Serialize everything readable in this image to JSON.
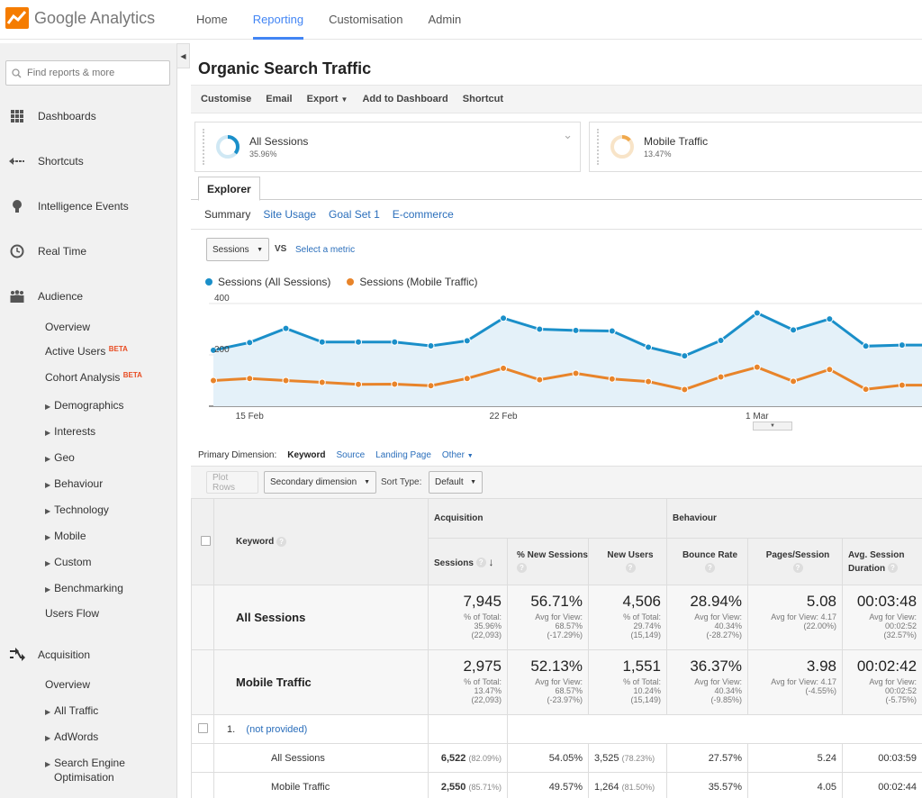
{
  "app": {
    "logo_text": "Google Analytics"
  },
  "topnav": [
    "Home",
    "Reporting",
    "Customisation",
    "Admin"
  ],
  "sidebar": {
    "search_placeholder": "Find reports & more",
    "main_items": [
      "Dashboards",
      "Shortcuts",
      "Intelligence Events",
      "Real Time",
      "Audience",
      "Acquisition"
    ],
    "audience_items": [
      "Overview",
      "Active Users",
      "Cohort Analysis",
      "Demographics",
      "Interests",
      "Geo",
      "Behaviour",
      "Technology",
      "Mobile",
      "Custom",
      "Benchmarking",
      "Users Flow"
    ],
    "beta": "BETA",
    "acquisition_items": [
      "Overview",
      "All Traffic",
      "AdWords",
      "Search Engine",
      "Optimisation"
    ]
  },
  "page": {
    "title": "Organic Search Traffic"
  },
  "toolbar": {
    "customise": "Customise",
    "email": "Email",
    "export": "Export",
    "add_dashboard": "Add to Dashboard",
    "shortcut": "Shortcut"
  },
  "segments": [
    {
      "name": "All Sessions",
      "pct": "35.96%",
      "color": "#1a8fc9"
    },
    {
      "name": "Mobile Traffic",
      "pct": "13.47%",
      "color": "#f0a94d"
    }
  ],
  "explorer": {
    "tab": "Explorer",
    "subtabs": [
      "Summary",
      "Site Usage",
      "Goal Set 1",
      "E-commerce"
    ],
    "metric": "Sessions",
    "vs": "VS",
    "select_metric": "Select a metric"
  },
  "chart_data": {
    "type": "line",
    "series": [
      {
        "name": "Sessions (All Sessions)",
        "color": "#1a8fc9",
        "values": [
          218,
          248,
          303,
          250,
          250,
          250,
          235,
          255,
          343,
          300,
          295,
          293,
          230,
          196,
          256,
          363,
          297,
          340,
          234,
          238
        ]
      },
      {
        "name": "Sessions (Mobile Traffic)",
        "color": "#e8842a",
        "values": [
          100,
          108,
          100,
          93,
          85,
          86,
          80,
          108,
          148,
          103,
          128,
          106,
          96,
          65,
          114,
          152,
          97,
          143,
          66,
          82
        ]
      }
    ],
    "y_ticks": [
      "400",
      "200"
    ],
    "ylim": [
      0,
      400
    ],
    "x_tick_labels": [
      "15 Feb",
      "22 Feb",
      "1 Mar"
    ],
    "x_tick_index": [
      1,
      8,
      15
    ],
    "fill_area": true
  },
  "dimension": {
    "label": "Primary Dimension:",
    "current": "Keyword",
    "links": [
      "Source",
      "Landing Page",
      "Other"
    ]
  },
  "controls": {
    "plot_rows": "Plot Rows",
    "secondary": "Secondary dimension",
    "sort_type": "Sort Type:",
    "sort_default": "Default"
  },
  "table": {
    "group_headers": [
      "Acquisition",
      "Behaviour"
    ],
    "columns": [
      "Keyword",
      "Sessions",
      "% New Sessions",
      "New Users",
      "Bounce Rate",
      "Pages/Session",
      "Avg. Session Duration"
    ],
    "summary_rows": [
      {
        "label": "All Sessions",
        "cells": [
          {
            "big": "7,945",
            "l1": "% of Total:",
            "l2": "35.96%",
            "l3": "(22,093)"
          },
          {
            "big": "56.71%",
            "l1": "Avg for View:",
            "l2": "68.57%",
            "l3": "(-17.29%)"
          },
          {
            "big": "4,506",
            "l1": "% of Total:",
            "l2": "29.74%",
            "l3": "(15,149)"
          },
          {
            "big": "28.94%",
            "l1": "Avg for View:",
            "l2": "40.34%",
            "l3": "(-28.27%)"
          },
          {
            "big": "5.08",
            "l1": "Avg for View: 4.17",
            "l2": "(22.00%)",
            "l3": ""
          },
          {
            "big": "00:03:48",
            "l1": "Avg for View:",
            "l2": "00:02:52",
            "l3": "(32.57%)"
          }
        ]
      },
      {
        "label": "Mobile Traffic",
        "cells": [
          {
            "big": "2,975",
            "l1": "% of Total:",
            "l2": "13.47%",
            "l3": "(22,093)"
          },
          {
            "big": "52.13%",
            "l1": "Avg for View:",
            "l2": "68.57%",
            "l3": "(-23.97%)"
          },
          {
            "big": "1,551",
            "l1": "% of Total:",
            "l2": "10.24%",
            "l3": "(15,149)"
          },
          {
            "big": "36.37%",
            "l1": "Avg for View:",
            "l2": "40.34%",
            "l3": "(-9.85%)"
          },
          {
            "big": "3.98",
            "l1": "Avg for View: 4.17",
            "l2": "(-4.55%)",
            "l3": ""
          },
          {
            "big": "00:02:42",
            "l1": "Avg for View:",
            "l2": "00:02:52",
            "l3": "(-5.75%)"
          }
        ]
      }
    ],
    "row1": {
      "index": "1.",
      "keyword": "(not provided)"
    },
    "detail_rows": [
      {
        "label": "All Sessions",
        "sessions": "6,522",
        "sessions_pct": "(82.09%)",
        "new_sessions": "54.05%",
        "new_users": "3,525",
        "new_users_pct": "(78.23%)",
        "bounce": "27.57%",
        "pages": "5.24",
        "duration": "00:03:59"
      },
      {
        "label": "Mobile Traffic",
        "sessions": "2,550",
        "sessions_pct": "(85.71%)",
        "new_sessions": "49.57%",
        "new_users": "1,264",
        "new_users_pct": "(81.50%)",
        "bounce": "35.57%",
        "pages": "4.05",
        "duration": "00:02:44"
      }
    ]
  }
}
